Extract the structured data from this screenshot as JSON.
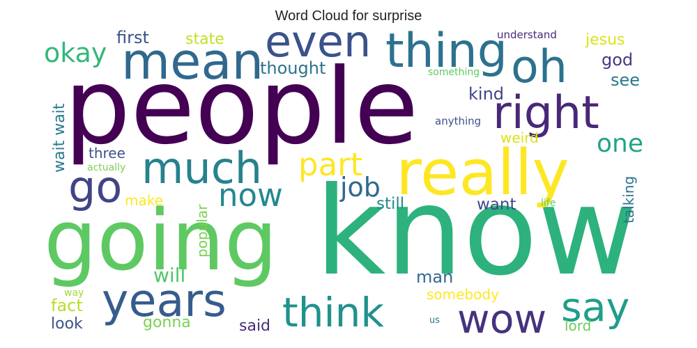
{
  "figure": {
    "title": "Word Cloud for surprise"
  },
  "colors": {
    "deep_purple": "#440154",
    "purple": "#472d7b",
    "indigo": "#3b528b",
    "blue": "#2c728e",
    "teal": "#21918c",
    "green_teal": "#28ae80",
    "green": "#5ec962",
    "lime": "#addc30",
    "yellow": "#fde725"
  },
  "words": [
    {
      "text": "people",
      "color": "#440154"
    },
    {
      "text": "know",
      "color": "#2db27d"
    },
    {
      "text": "going",
      "color": "#5ec962"
    },
    {
      "text": "really",
      "color": "#fde725"
    },
    {
      "text": "thing",
      "color": "#2c728e"
    },
    {
      "text": "mean",
      "color": "#31688e"
    },
    {
      "text": "oh",
      "color": "#2c728e"
    },
    {
      "text": "even",
      "color": "#3b528b"
    },
    {
      "text": "right",
      "color": "#482878"
    },
    {
      "text": "much",
      "color": "#26828e"
    },
    {
      "text": "years",
      "color": "#365c8d"
    },
    {
      "text": "think",
      "color": "#21918c"
    },
    {
      "text": "wow",
      "color": "#46327e"
    },
    {
      "text": "say",
      "color": "#1f9e89"
    },
    {
      "text": "go",
      "color": "#414487"
    },
    {
      "text": "part",
      "color": "#fde725"
    },
    {
      "text": "now",
      "color": "#23898e"
    },
    {
      "text": "okay",
      "color": "#35b779"
    },
    {
      "text": "job",
      "color": "#31688e"
    },
    {
      "text": "one",
      "color": "#20a486"
    },
    {
      "text": "first",
      "color": "#3b528b"
    },
    {
      "text": "state",
      "color": "#c2df23"
    },
    {
      "text": "thought",
      "color": "#2c728e"
    },
    {
      "text": "jesus",
      "color": "#dde318"
    },
    {
      "text": "god",
      "color": "#443983"
    },
    {
      "text": "see",
      "color": "#2a788e"
    },
    {
      "text": "kind",
      "color": "#414487"
    },
    {
      "text": "wait wait",
      "color": "#2a788e"
    },
    {
      "text": "three",
      "color": "#3b528b"
    },
    {
      "text": "weird",
      "color": "#dde318"
    },
    {
      "text": "make",
      "color": "#fde725"
    },
    {
      "text": "still",
      "color": "#23898e"
    },
    {
      "text": "want",
      "color": "#3e4989"
    },
    {
      "text": "will",
      "color": "#52c569"
    },
    {
      "text": "popular",
      "color": "#7ad151"
    },
    {
      "text": "talking",
      "color": "#2c728e"
    },
    {
      "text": "man",
      "color": "#31688e"
    },
    {
      "text": "somebody",
      "color": "#fde725"
    },
    {
      "text": "fact",
      "color": "#b8de29"
    },
    {
      "text": "look",
      "color": "#3b528b"
    },
    {
      "text": "gonna",
      "color": "#7ad151"
    },
    {
      "text": "said",
      "color": "#472d7b"
    },
    {
      "text": "lord",
      "color": "#6ccd5a"
    },
    {
      "text": "understand",
      "color": "#482878"
    },
    {
      "text": "something",
      "color": "#5ec962"
    },
    {
      "text": "anything",
      "color": "#3b528b"
    },
    {
      "text": "actually",
      "color": "#7ad151"
    },
    {
      "text": "life",
      "color": "#5ec962"
    },
    {
      "text": "way",
      "color": "#a0da39"
    },
    {
      "text": "us",
      "color": "#2c728e"
    }
  ]
}
